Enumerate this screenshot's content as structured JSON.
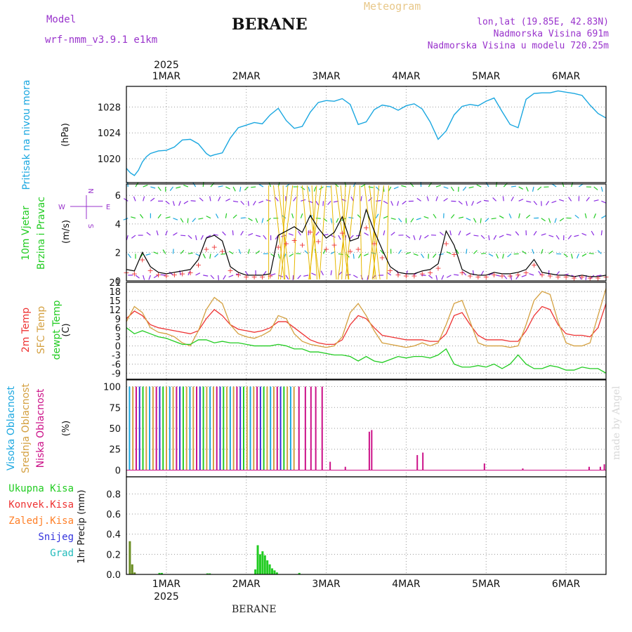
{
  "header": {
    "model_label": "Model",
    "model_name": "wrf-nmm_v3.9.1 e1km",
    "title": "BERANE",
    "meteogram": "Meteogram",
    "lonlat": "lon,lat (19.85E, 42.83N)",
    "elevation": "Nadmorska Visina 691m",
    "model_elevation": "Nadmorska Visina u modelu 720.25m"
  },
  "footer": {
    "station": "BERANE",
    "watermark": "made by Angel"
  },
  "colors": {
    "pressure": "#1aa7e0",
    "wind_green": "#22cc22",
    "wind_purple": "#8a2be2",
    "temp2m": "#ee3333",
    "sfc": "#d4a040",
    "dewpt": "#22cc22",
    "cloud_high": "#1aa7e0",
    "cloud_mid": "#d4a040",
    "cloud_low": "#cc1188",
    "precip_total": "#22cc22",
    "precip_conv": "#ee3333",
    "precip_frz": "#ff7f27",
    "precip_snow": "#3333dd",
    "precip_graup": "#22bbbb"
  },
  "chart_data": [
    {
      "type": "line",
      "panel": "pressure",
      "ylabel": "(hPa)",
      "side_label": "Pritisak na nivou mora",
      "y_ticks": [
        1020,
        1024,
        1028
      ],
      "ylim": [
        1016.3,
        1031.2
      ],
      "x_ticks": [
        "1MAR",
        "2MAR",
        "3MAR",
        "4MAR",
        "5MAR",
        "6MAR"
      ],
      "x_top_year": "2025",
      "x_bottom_year": "2025",
      "xlim": [
        -0.5,
        5.5
      ],
      "grid": true,
      "series": [
        {
          "x": [
            -0.5,
            -0.45,
            -0.4,
            -0.35,
            -0.3,
            -0.25,
            -0.2,
            -0.1,
            0.0,
            0.1,
            0.2,
            0.3,
            0.4,
            0.5,
            0.55,
            0.6,
            0.7,
            0.8,
            0.9,
            1.0,
            1.1,
            1.2,
            1.3,
            1.4,
            1.5,
            1.6,
            1.7,
            1.8,
            1.9,
            2.0,
            2.1,
            2.2,
            2.3,
            2.4,
            2.5,
            2.6,
            2.7,
            2.8,
            2.9,
            3.0,
            3.1,
            3.2,
            3.3,
            3.4,
            3.5,
            3.6,
            3.7,
            3.8,
            3.9,
            4.0,
            4.1,
            4.2,
            4.3,
            4.4,
            4.5,
            4.6,
            4.7,
            4.8,
            4.9,
            5.0,
            5.1,
            5.2,
            5.3,
            5.4,
            5.5
          ],
          "y": [
            1018.5,
            1017.8,
            1017.4,
            1018.2,
            1019.5,
            1020.3,
            1020.8,
            1021.2,
            1021.3,
            1021.8,
            1022.9,
            1023.0,
            1022.3,
            1020.8,
            1020.4,
            1020.6,
            1020.9,
            1023.2,
            1024.8,
            1025.2,
            1025.6,
            1025.4,
            1026.8,
            1027.8,
            1025.9,
            1024.7,
            1025.0,
            1027.2,
            1028.7,
            1029.0,
            1028.9,
            1029.3,
            1028.4,
            1025.3,
            1025.7,
            1027.6,
            1028.3,
            1028.1,
            1027.5,
            1028.2,
            1028.5,
            1027.7,
            1025.7,
            1023.0,
            1024.3,
            1026.8,
            1028.1,
            1028.4,
            1028.2,
            1028.9,
            1029.4,
            1027.3,
            1025.3,
            1024.8,
            1029.2,
            1030.1,
            1030.2,
            1030.2,
            1030.5,
            1030.3,
            1030.1,
            1029.8,
            1028.3,
            1027.0,
            1026.3
          ]
        }
      ]
    },
    {
      "type": "line",
      "panel": "wind",
      "ylabel": "(m/s)",
      "side_labels": [
        "10m Vjetar",
        "Brzina i Pravac"
      ],
      "compass": {
        "n": "N",
        "w": "W",
        "e": "E",
        "s": "S"
      },
      "y_ticks": [
        0,
        2,
        4,
        6
      ],
      "ylim": [
        0,
        6.8
      ],
      "xlim": [
        -0.5,
        5.5
      ],
      "grid": true,
      "series": [
        {
          "x": [
            -0.5,
            -0.4,
            -0.3,
            -0.2,
            -0.1,
            0.0,
            0.1,
            0.2,
            0.3,
            0.4,
            0.5,
            0.6,
            0.7,
            0.8,
            0.9,
            1.0,
            1.1,
            1.2,
            1.3,
            1.4,
            1.5,
            1.6,
            1.7,
            1.8,
            1.9,
            2.0,
            2.1,
            2.2,
            2.3,
            2.4,
            2.5,
            2.6,
            2.7,
            2.8,
            2.9,
            3.0,
            3.1,
            3.2,
            3.3,
            3.4,
            3.5,
            3.6,
            3.7,
            3.8,
            3.9,
            4.0,
            4.1,
            4.2,
            4.3,
            4.4,
            4.5,
            4.6,
            4.7,
            4.8,
            4.9,
            5.0,
            5.1,
            5.2,
            5.3,
            5.4,
            5.5
          ],
          "y": [
            0.8,
            0.7,
            2.0,
            1.0,
            0.6,
            0.5,
            0.6,
            0.7,
            0.8,
            1.5,
            3.0,
            3.2,
            2.8,
            1.0,
            0.6,
            0.4,
            0.4,
            0.4,
            0.5,
            3.2,
            3.5,
            3.8,
            3.4,
            4.6,
            3.7,
            3.0,
            3.4,
            4.5,
            2.8,
            3.0,
            5.0,
            3.5,
            2.2,
            1.0,
            0.6,
            0.5,
            0.5,
            0.7,
            0.8,
            1.2,
            3.5,
            2.5,
            0.8,
            0.5,
            0.4,
            0.4,
            0.6,
            0.5,
            0.5,
            0.6,
            0.8,
            1.5,
            0.6,
            0.5,
            0.4,
            0.4,
            0.3,
            0.4,
            0.3,
            0.3,
            0.4
          ]
        }
      ]
    },
    {
      "type": "line",
      "panel": "temperature",
      "ylabel": "(C)",
      "side_labels": [
        "2m Temp",
        "SFC Temp",
        "dewpt Temp"
      ],
      "y_ticks": [
        -9,
        -6,
        -3,
        0,
        3,
        6,
        9,
        12,
        15,
        18,
        21
      ],
      "ylim": [
        -11,
        21
      ],
      "xlim": [
        -0.5,
        5.5
      ],
      "grid": true,
      "series": [
        {
          "name": "2m Temp",
          "x": [
            -0.5,
            -0.4,
            -0.3,
            -0.2,
            -0.1,
            0.0,
            0.1,
            0.2,
            0.3,
            0.4,
            0.5,
            0.6,
            0.7,
            0.8,
            0.9,
            1.0,
            1.1,
            1.2,
            1.3,
            1.4,
            1.5,
            1.6,
            1.7,
            1.8,
            1.9,
            2.0,
            2.1,
            2.2,
            2.3,
            2.4,
            2.5,
            2.6,
            2.7,
            2.8,
            2.9,
            3.0,
            3.1,
            3.2,
            3.3,
            3.4,
            3.5,
            3.6,
            3.7,
            3.8,
            3.9,
            4.0,
            4.1,
            4.2,
            4.3,
            4.4,
            4.5,
            4.6,
            4.7,
            4.8,
            4.9,
            5.0,
            5.1,
            5.2,
            5.3,
            5.4,
            5.5
          ],
          "y": [
            9,
            11.5,
            10,
            7,
            6,
            5.5,
            5,
            4.5,
            4,
            5,
            9,
            12,
            10,
            7,
            5.5,
            5,
            4.5,
            5,
            6,
            8,
            8,
            6,
            4,
            2,
            1,
            0.5,
            0.5,
            2,
            7,
            10,
            9,
            6,
            3.5,
            3,
            2.5,
            2,
            2,
            2,
            1.5,
            1.5,
            4,
            10,
            11,
            7,
            3.5,
            2,
            2,
            2,
            1.5,
            1.5,
            5,
            10,
            13,
            12,
            7,
            4,
            3.5,
            3.5,
            3,
            6,
            14
          ]
        },
        {
          "name": "SFC Temp",
          "x": [
            -0.5,
            -0.4,
            -0.3,
            -0.2,
            -0.1,
            0.0,
            0.1,
            0.2,
            0.3,
            0.4,
            0.5,
            0.6,
            0.7,
            0.8,
            0.9,
            1.0,
            1.1,
            1.2,
            1.3,
            1.4,
            1.5,
            1.6,
            1.7,
            1.8,
            1.9,
            2.0,
            2.1,
            2.2,
            2.3,
            2.4,
            2.5,
            2.6,
            2.7,
            2.8,
            2.9,
            3.0,
            3.1,
            3.2,
            3.3,
            3.4,
            3.5,
            3.6,
            3.7,
            3.8,
            3.9,
            4.0,
            4.1,
            4.2,
            4.3,
            4.4,
            4.5,
            4.6,
            4.7,
            4.8,
            4.9,
            5.0,
            5.1,
            5.2,
            5.3,
            5.4,
            5.5
          ],
          "y": [
            8,
            13,
            11,
            6,
            4.5,
            4,
            3,
            1,
            0,
            5,
            12,
            16,
            14,
            7,
            4,
            3,
            2.5,
            3.5,
            5,
            10,
            9,
            4,
            1.5,
            0.5,
            0,
            -0.5,
            0,
            3,
            11,
            14,
            10,
            5,
            1,
            0.5,
            0,
            -0.5,
            0,
            1,
            0,
            1,
            7,
            14,
            15,
            8,
            1,
            0,
            0,
            0,
            -0.5,
            0,
            7,
            15,
            18,
            17,
            8,
            1,
            0,
            0,
            1,
            10,
            19
          ]
        },
        {
          "name": "dewpt Temp",
          "x": [
            -0.5,
            -0.4,
            -0.3,
            -0.2,
            -0.1,
            0.0,
            0.1,
            0.2,
            0.3,
            0.4,
            0.5,
            0.6,
            0.7,
            0.8,
            0.9,
            1.0,
            1.1,
            1.2,
            1.3,
            1.4,
            1.5,
            1.6,
            1.7,
            1.8,
            1.9,
            2.0,
            2.1,
            2.2,
            2.3,
            2.4,
            2.5,
            2.6,
            2.7,
            2.8,
            2.9,
            3.0,
            3.1,
            3.2,
            3.3,
            3.4,
            3.5,
            3.6,
            3.7,
            3.8,
            3.9,
            4.0,
            4.1,
            4.2,
            4.3,
            4.4,
            4.5,
            4.6,
            4.7,
            4.8,
            4.9,
            5.0,
            5.1,
            5.2,
            5.3,
            5.4,
            5.5
          ],
          "y": [
            6,
            4,
            5,
            4,
            3,
            2.5,
            1.5,
            0.5,
            0.5,
            2,
            2,
            1,
            1.5,
            1,
            1,
            0.5,
            0,
            0,
            0,
            0.5,
            0,
            -1,
            -1,
            -2,
            -2,
            -2.5,
            -3,
            -3,
            -3.5,
            -5,
            -3.5,
            -5,
            -5.5,
            -4.5,
            -3.5,
            -4,
            -3.5,
            -3.5,
            -4,
            -3,
            -1,
            -6,
            -7,
            -7,
            -6.5,
            -7,
            -6,
            -7.5,
            -6,
            -3,
            -6,
            -7.5,
            -7.5,
            -6.5,
            -7,
            -8,
            -8,
            -7,
            -7.5,
            -7.5,
            -9
          ]
        }
      ]
    },
    {
      "type": "bar",
      "panel": "clouds",
      "ylabel": "(%)",
      "side_labels": [
        "Visoka Oblacnost",
        "Srednja Oblacnost",
        "Niska Oblacnost"
      ],
      "y_ticks": [
        0,
        25,
        50,
        75,
        100
      ],
      "ylim": [
        -8,
        108
      ],
      "xlim": [
        -0.5,
        5.5
      ],
      "grid": true,
      "dense_overcast": {
        "x_start": -0.47,
        "x_end": 1.6,
        "step": 0.042
      },
      "series": [
        {
          "name": "Niska Oblacnost",
          "x": [
            1.65,
            1.73,
            1.8,
            1.86,
            1.94,
            2.04,
            2.23,
            2.53,
            2.56,
            3.13,
            3.2,
            3.97,
            4.45,
            5.28,
            5.42,
            5.47
          ],
          "y": [
            100,
            100,
            100,
            100,
            100,
            10,
            4,
            46,
            48,
            18,
            21,
            8,
            2,
            4,
            4,
            7
          ]
        }
      ]
    },
    {
      "type": "bar",
      "panel": "precip",
      "ylabel": "1hr Precip (mm)",
      "legend": [
        "Ukupna Kisa",
        "Konvek.Kisa",
        "Zaledj.Kisa",
        "Snijeg",
        "Grad"
      ],
      "y_ticks": [
        0.0,
        0.2,
        0.4,
        0.6,
        0.8
      ],
      "ylim": [
        0,
        0.97
      ],
      "xlim": [
        -0.5,
        5.5
      ],
      "grid": true,
      "series": [
        {
          "name": "Ukupna Kisa",
          "x": [
            -0.47,
            -0.44,
            -0.41,
            -0.1,
            -0.07,
            0.5,
            0.53,
            1.1,
            1.13,
            1.16,
            1.19,
            1.22,
            1.25,
            1.28,
            1.31,
            1.34,
            1.37,
            1.65
          ],
          "y": [
            0.33,
            0.1,
            0.02,
            0.015,
            0.015,
            0.01,
            0.01,
            0.05,
            0.29,
            0.2,
            0.23,
            0.19,
            0.14,
            0.1,
            0.06,
            0.04,
            0.02,
            0.015
          ]
        }
      ]
    }
  ]
}
